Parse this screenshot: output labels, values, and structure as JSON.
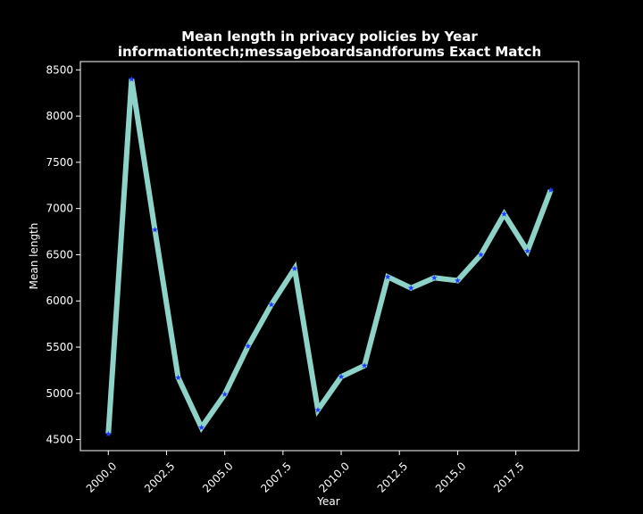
{
  "chart_data": {
    "type": "line",
    "title_line1": "Mean length in privacy policies by Year",
    "title_line2": "informationtech;messageboardsandforums Exact Match",
    "xlabel": "Year",
    "ylabel": "Mean length",
    "x": [
      2000,
      2001,
      2002,
      2003,
      2004,
      2005,
      2006,
      2007,
      2008,
      2009,
      2010,
      2011,
      2012,
      2013,
      2014,
      2015,
      2016,
      2017,
      2018,
      2019
    ],
    "series": [
      {
        "values": [
          4560,
          8400,
          6770,
          5170,
          4630,
          4990,
          5510,
          5960,
          6350,
          4820,
          5180,
          5300,
          6260,
          6140,
          6250,
          6220,
          6500,
          6940,
          6540,
          7200
        ]
      }
    ],
    "xlim": [
      1998.8,
      2020.2
    ],
    "ylim": [
      4380,
      8590
    ],
    "xticks": [
      "2000.0",
      "2002.5",
      "2005.0",
      "2007.5",
      "2010.0",
      "2012.5",
      "2015.0",
      "2017.5"
    ],
    "xtick_values": [
      2000.0,
      2002.5,
      2005.0,
      2007.5,
      2010.0,
      2012.5,
      2015.0,
      2017.5
    ],
    "yticks": [
      "4500",
      "5000",
      "5500",
      "6000",
      "6500",
      "7000",
      "7500",
      "8000",
      "8500"
    ],
    "ytick_values": [
      4500,
      5000,
      5500,
      6000,
      6500,
      7000,
      7500,
      8000,
      8500
    ],
    "grid": false,
    "line_color": "#8dd3c7",
    "marker_color": "#1f3bff",
    "background": "#000000",
    "text_color": "#ffffff"
  }
}
